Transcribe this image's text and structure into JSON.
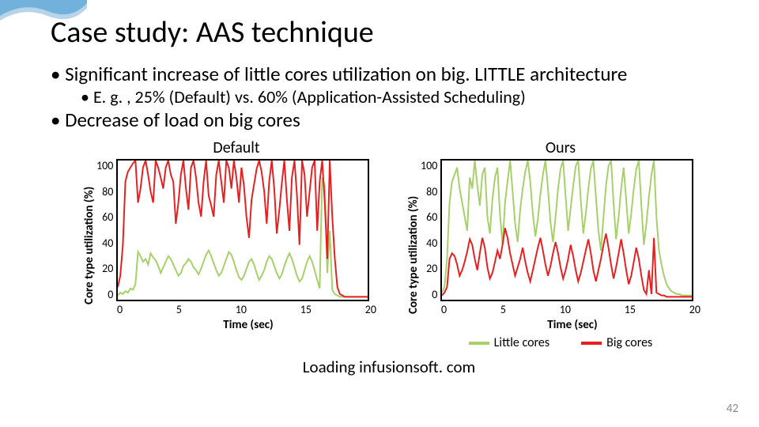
{
  "title": "Case study: AAS technique",
  "bullets": {
    "b1a": "Significant increase of little cores utilization on big. LITTLE architecture",
    "b2a": "E. g. , 25% (Default) vs. 60% (Application-Assisted Scheduling)",
    "b1b": "Decrease of load on big cores"
  },
  "caption": "Loading infusionsoft. com",
  "page_number": "42",
  "legend": {
    "little": "Little cores",
    "big": "Big cores"
  },
  "colors": {
    "little": "#a6d068",
    "big": "#e62020",
    "axis": "#000000",
    "bg": "#ffffff",
    "wave1": "#b8d4e8",
    "wave2": "#5fa8d8"
  },
  "axis": {
    "ylabel": "Core type utilization (%)",
    "xlabel": "Time (sec)",
    "yticks": [
      "100",
      "80",
      "60",
      "40",
      "20",
      "0"
    ],
    "xticks": [
      "0",
      "5",
      "10",
      "15",
      "20"
    ],
    "ylim": [
      0,
      100
    ],
    "xlim": [
      0,
      20
    ],
    "line_width": 2
  },
  "charts": {
    "default": {
      "title": "Default",
      "little": [
        4,
        6,
        5,
        7,
        6,
        9,
        8,
        12,
        35,
        32,
        28,
        30,
        26,
        34,
        31,
        29,
        25,
        20,
        24,
        28,
        32,
        30,
        26,
        22,
        18,
        20,
        25,
        27,
        30,
        28,
        24,
        22,
        19,
        23,
        28,
        33,
        36,
        32,
        27,
        22,
        18,
        20,
        25,
        30,
        35,
        33,
        28,
        22,
        17,
        15,
        18,
        23,
        28,
        30,
        26,
        20,
        15,
        18,
        22,
        28,
        32,
        30,
        25,
        20,
        16,
        19,
        25,
        30,
        34,
        30,
        24,
        18,
        14,
        16,
        22,
        28,
        32,
        28,
        22,
        15,
        9,
        88,
        82,
        20,
        50,
        8,
        5,
        4,
        3,
        3,
        3,
        3,
        3,
        3,
        3,
        3,
        3,
        3,
        3,
        3
      ],
      "big": [
        10,
        18,
        40,
        85,
        92,
        95,
        98,
        100,
        70,
        80,
        95,
        100,
        90,
        78,
        70,
        100,
        95,
        88,
        80,
        95,
        100,
        90,
        85,
        55,
        70,
        90,
        100,
        80,
        65,
        95,
        100,
        88,
        70,
        60,
        85,
        100,
        75,
        68,
        60,
        90,
        100,
        85,
        70,
        100,
        95,
        80,
        100,
        88,
        70,
        95,
        82,
        60,
        45,
        72,
        83,
        94,
        100,
        92,
        78,
        55,
        85,
        100,
        80,
        48,
        65,
        84,
        100,
        72,
        50,
        88,
        100,
        75,
        40,
        100,
        90,
        60,
        78,
        95,
        100,
        50,
        85,
        100,
        70,
        30,
        100,
        60,
        30,
        10,
        5,
        4,
        3,
        3,
        3,
        3,
        3,
        3,
        3,
        3,
        3,
        3
      ]
    },
    "ours": {
      "title": "Ours",
      "little": [
        6,
        10,
        30,
        70,
        85,
        90,
        95,
        80,
        70,
        60,
        50,
        88,
        80,
        100,
        82,
        68,
        90,
        95,
        60,
        48,
        72,
        88,
        95,
        62,
        40,
        70,
        85,
        100,
        78,
        55,
        42,
        65,
        80,
        92,
        100,
        85,
        62,
        46,
        58,
        76,
        90,
        100,
        80,
        56,
        42,
        60,
        80,
        94,
        100,
        74,
        50,
        66,
        82,
        96,
        100,
        72,
        48,
        62,
        80,
        94,
        100,
        74,
        50,
        36,
        60,
        82,
        96,
        100,
        70,
        44,
        60,
        80,
        95,
        72,
        48,
        62,
        80,
        94,
        100,
        68,
        40,
        55,
        74,
        90,
        100,
        60,
        36,
        26,
        18,
        12,
        9,
        7,
        6,
        5,
        5,
        4,
        4,
        4,
        4,
        4
      ],
      "big": [
        4,
        6,
        10,
        30,
        34,
        32,
        26,
        18,
        22,
        28,
        35,
        44,
        40,
        30,
        22,
        34,
        45,
        38,
        24,
        16,
        20,
        28,
        36,
        30,
        40,
        52,
        45,
        34,
        26,
        18,
        24,
        30,
        38,
        28,
        20,
        14,
        22,
        30,
        38,
        45,
        36,
        26,
        18,
        25,
        34,
        42,
        34,
        24,
        16,
        22,
        30,
        40,
        32,
        22,
        14,
        20,
        28,
        36,
        44,
        34,
        22,
        14,
        22,
        30,
        40,
        48,
        38,
        26,
        16,
        24,
        34,
        44,
        34,
        22,
        12,
        18,
        28,
        38,
        30,
        18,
        8,
        5,
        22,
        5,
        45,
        6,
        5,
        4,
        4,
        3,
        3,
        3,
        3,
        3,
        3,
        3,
        3,
        3,
        3,
        3
      ]
    }
  }
}
